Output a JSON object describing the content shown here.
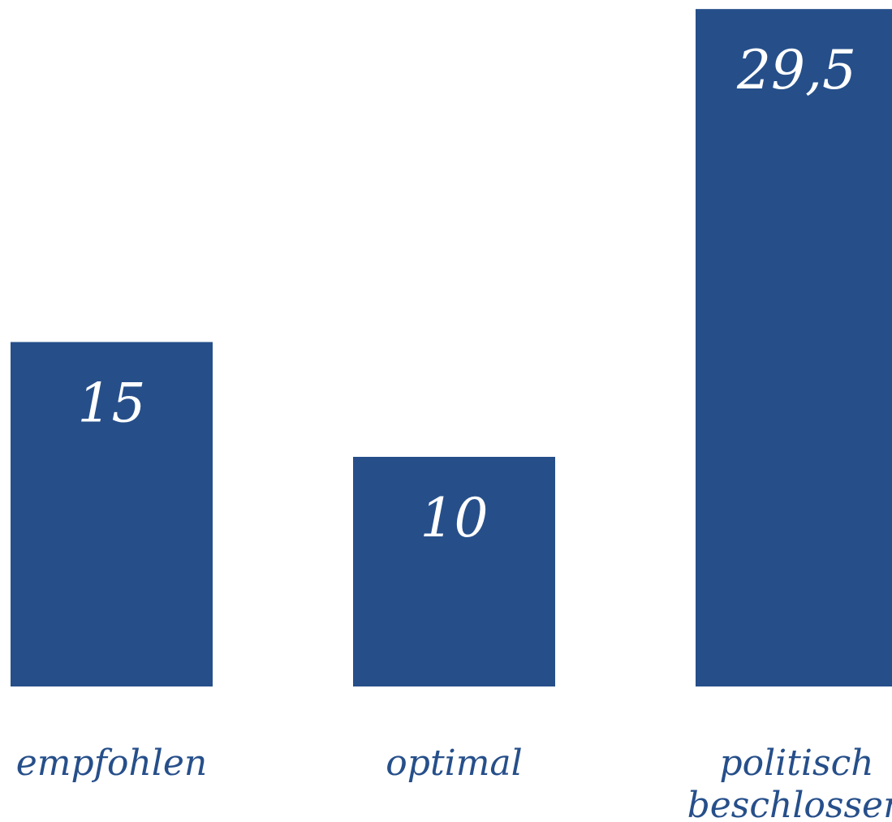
{
  "chart_data": {
    "type": "bar",
    "categories": [
      "empfohlen",
      "optimal",
      "politisch beschlossen"
    ],
    "category_lines": [
      [
        "empfohlen"
      ],
      [
        "optimal"
      ],
      [
        "politisch",
        "beschlossen"
      ]
    ],
    "values": [
      15,
      10,
      29.5
    ],
    "value_labels": [
      "15",
      "10",
      "29,5"
    ],
    "ylim": [
      0,
      30
    ],
    "grid": false,
    "colors": {
      "bar": "#264f8a",
      "value_label": "#ffffff",
      "category_label": "#264f8a"
    }
  }
}
